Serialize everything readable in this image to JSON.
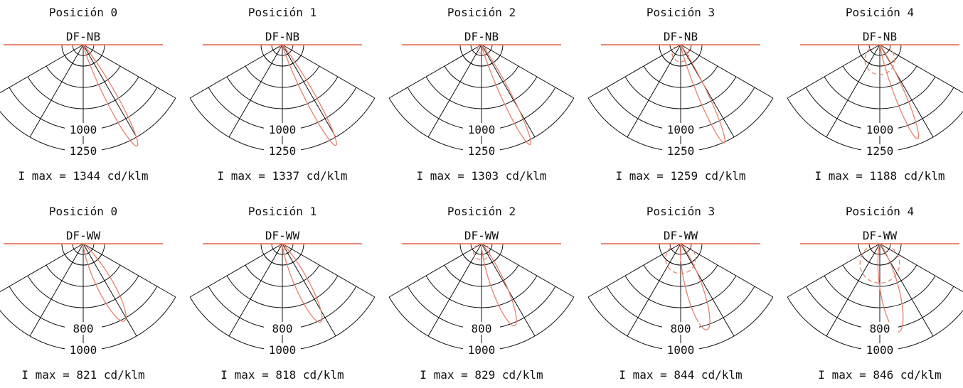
{
  "colors": {
    "curve": "#e8806a",
    "ceiling": "#e88a74",
    "grid": "#111111"
  },
  "chart_data": [
    {
      "type": "polar",
      "title": "Posición 0",
      "subtitle": "DF-NB",
      "imax": "I max = 1344 cd/klm",
      "rmax": 1344,
      "ticks": [
        1000,
        1250
      ],
      "peak_angle": 28,
      "spread": 5,
      "dashed_r": 0
    },
    {
      "type": "polar",
      "title": "Posición 1",
      "subtitle": "DF-NB",
      "imax": "I max = 1337 cd/klm",
      "rmax": 1337,
      "ticks": [
        1000,
        1250
      ],
      "peak_angle": 28,
      "spread": 4.5,
      "dashed_r": 60
    },
    {
      "type": "polar",
      "title": "Posición 2",
      "subtitle": "DF-NB",
      "imax": "I max = 1303 cd/klm",
      "rmax": 1303,
      "ticks": [
        1000,
        1250
      ],
      "peak_angle": 26,
      "spread": 4.5,
      "dashed_r": 100
    },
    {
      "type": "polar",
      "title": "Posición 3",
      "subtitle": "DF-NB",
      "imax": "I max = 1259 cd/klm",
      "rmax": 1259,
      "ticks": [
        1000,
        1250
      ],
      "peak_angle": 24,
      "spread": 4.5,
      "dashed_r": 200
    },
    {
      "type": "polar",
      "title": "Posición 4",
      "subtitle": "DF-NB",
      "imax": "I max = 1188 cd/klm",
      "rmax": 1188,
      "ticks": [
        1000,
        1250
      ],
      "peak_angle": 22,
      "spread": 5,
      "dashed_r": 350
    },
    {
      "type": "polar",
      "title": "Posición 0",
      "subtitle": "DF-WW",
      "imax": "I max = 821 cd/klm",
      "rmax": 821,
      "ticks": [
        800,
        1000
      ],
      "peak_angle": 28,
      "spread": 9,
      "dashed_r": 0
    },
    {
      "type": "polar",
      "title": "Posición 1",
      "subtitle": "DF-WW",
      "imax": "I max = 818 cd/klm",
      "rmax": 818,
      "ticks": [
        800,
        1000
      ],
      "peak_angle": 26,
      "spread": 8,
      "dashed_r": 60
    },
    {
      "type": "polar",
      "title": "Posición 2",
      "subtitle": "DF-WW",
      "imax": "I max = 829 cd/klm",
      "rmax": 829,
      "ticks": [
        800,
        1000
      ],
      "peak_angle": 22,
      "spread": 8,
      "dashed_r": 150
    },
    {
      "type": "polar",
      "title": "Posición 3",
      "subtitle": "DF-WW",
      "imax": "I max = 844 cd/klm",
      "rmax": 844,
      "ticks": [
        800,
        1000
      ],
      "peak_angle": 17,
      "spread": 9,
      "dashed_r": 280
    },
    {
      "type": "polar",
      "title": "Posición 4",
      "subtitle": "DF-WW",
      "imax": "I max = 846 cd/klm",
      "rmax": 846,
      "ticks": [
        800,
        1000
      ],
      "peak_angle": 12,
      "spread": 10,
      "dashed_r": 370
    }
  ]
}
